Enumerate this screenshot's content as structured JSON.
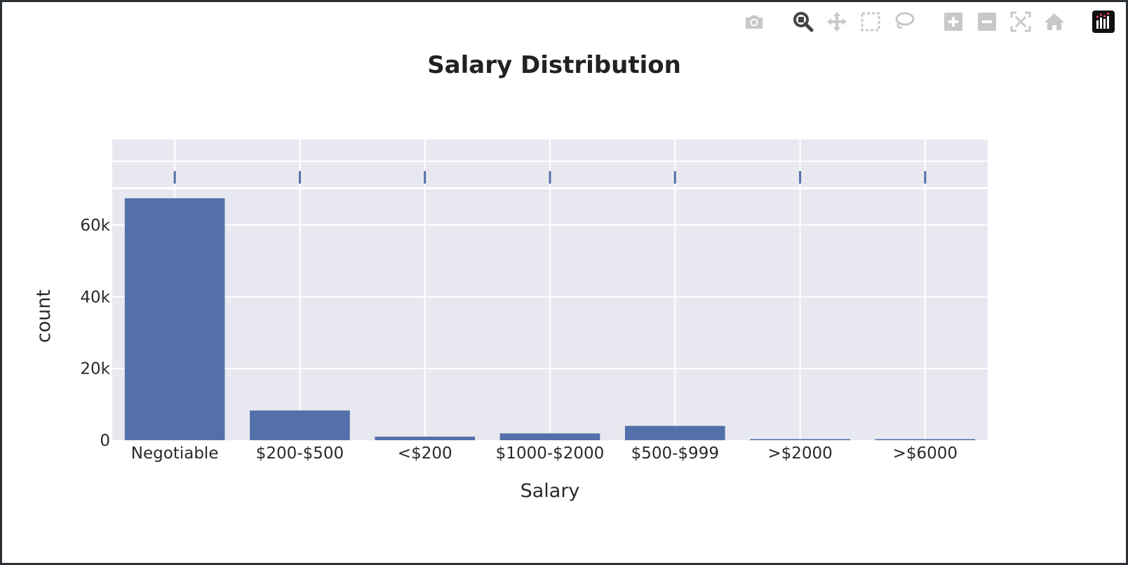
{
  "modebar": {
    "buttons": [
      {
        "name": "camera-icon",
        "active": false
      },
      {
        "name": "zoom-icon",
        "active": true
      },
      {
        "name": "pan-icon",
        "active": false
      },
      {
        "name": "box-select-icon",
        "active": false
      },
      {
        "name": "lasso-select-icon",
        "active": false
      },
      {
        "name": "zoom-in-icon",
        "active": false
      },
      {
        "name": "zoom-out-icon",
        "active": false
      },
      {
        "name": "autoscale-icon",
        "active": false
      },
      {
        "name": "reset-axes-icon",
        "active": false
      },
      {
        "name": "plotly-logo-icon",
        "active": false
      }
    ]
  },
  "colors": {
    "bar": "#5470aa",
    "plot_bg": "#e8e9f0",
    "grid": "#ffffff",
    "modebar_icon": "#c8c8c8",
    "modebar_active": "#444444"
  },
  "chart_data": {
    "type": "bar",
    "title": "Salary Distribution",
    "xlabel": "Salary",
    "ylabel": "count",
    "categories": [
      "Negotiable",
      "$200-$500",
      "<$200",
      "$1000-$2000",
      "$500-$999",
      ">$2000",
      ">$6000"
    ],
    "values": [
      67500,
      8300,
      1000,
      1900,
      4000,
      300,
      300
    ],
    "ylim": [
      0,
      70000
    ],
    "yticks": [
      0,
      20000,
      40000,
      60000
    ],
    "ytick_labels": [
      "0",
      "20k",
      "40k",
      "60k"
    ],
    "grid": true,
    "marginal": "rug"
  }
}
